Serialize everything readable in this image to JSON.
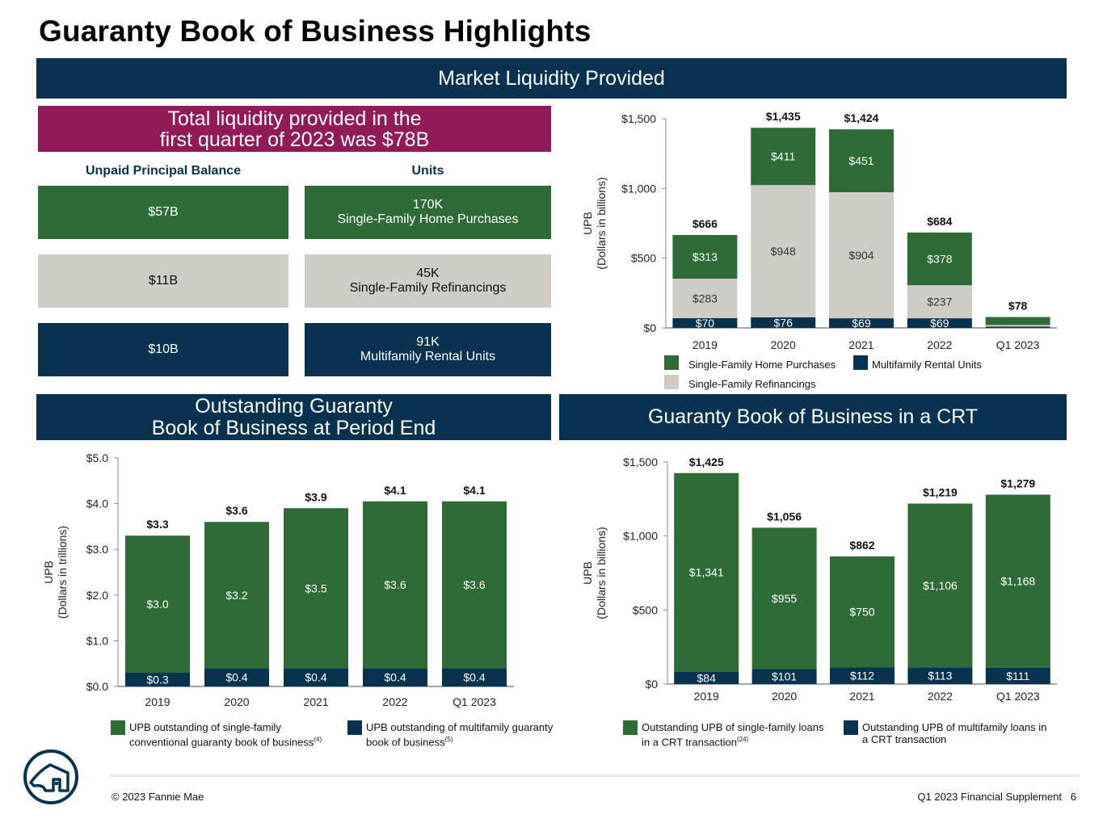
{
  "page_title": "Guaranty Book of Business Highlights",
  "market_liquidity": {
    "banner": "Market Liquidity Provided",
    "highlight": "Total liquidity provided in the\nfirst quarter of 2023 was $78B",
    "col_upb": "Unpaid Principal Balance",
    "col_units": "Units",
    "rows": [
      {
        "upb": "$57B",
        "units": "170K\nSingle-Family Home Purchases",
        "color": "#2e6b37"
      },
      {
        "upb": "$11B",
        "units": "45K\nSingle-Family Refinancings",
        "color": "#cfccc6"
      },
      {
        "upb": "$10B",
        "units": "91K\nMultifamily Rental Units",
        "color": "#073250"
      }
    ]
  },
  "outstanding_banner": "Outstanding Guaranty\nBook of Business at Period End",
  "crt_banner": "Guaranty Book of Business in a CRT",
  "colors": {
    "green": "#2e6b37",
    "grey": "#cfccc6",
    "navy": "#073250",
    "magenta": "#921a57"
  },
  "chart_data": [
    {
      "id": "liquidity",
      "type": "bar",
      "stacked": true,
      "categories": [
        "2019",
        "2020",
        "2021",
        "2022",
        "Q1 2023"
      ],
      "series": [
        {
          "name": "Multifamily Rental Units",
          "color": "#073250",
          "values": [
            70,
            76,
            69,
            69,
            10
          ],
          "labels": [
            "$70",
            "$76",
            "$69",
            "$69",
            ""
          ]
        },
        {
          "name": "Single-Family Refinancings",
          "color": "#cfccc6",
          "values": [
            283,
            948,
            904,
            237,
            11
          ],
          "labels": [
            "$283",
            "$948",
            "$904",
            "$237",
            ""
          ]
        },
        {
          "name": "Single-Family Home Purchases",
          "color": "#2e6b37",
          "values": [
            313,
            411,
            451,
            378,
            57
          ],
          "labels": [
            "$313",
            "$411",
            "$451",
            "$378",
            ""
          ]
        }
      ],
      "totals": [
        "$666",
        "$1,435",
        "$1,424",
        "$684",
        "$78"
      ],
      "ylabel": "UPB\n(Dollars in billions)",
      "ylim": [
        0,
        1500
      ],
      "yticks": [
        0,
        500,
        1000,
        1500
      ],
      "ytick_labels": [
        "$0",
        "$500",
        "$1,000",
        "$1,500"
      ],
      "legend": [
        {
          "name": "Single-Family Home Purchases",
          "color": "#2e6b37"
        },
        {
          "name": "Multifamily Rental Units",
          "color": "#073250"
        },
        {
          "name": "Single-Family Refinancings",
          "color": "#cfccc6"
        }
      ]
    },
    {
      "id": "outstanding",
      "type": "bar",
      "stacked": true,
      "categories": [
        "2019",
        "2020",
        "2021",
        "2022",
        "Q1 2023"
      ],
      "series": [
        {
          "name": "UPB outstanding of multifamily guaranty book of business",
          "color": "#073250",
          "values": [
            0.3,
            0.4,
            0.4,
            0.4,
            0.4
          ],
          "labels": [
            "$0.3",
            "$0.4",
            "$0.4",
            "$0.4",
            "$0.4"
          ]
        },
        {
          "name": "UPB outstanding of single-family conventional guaranty book of business",
          "color": "#2e6b37",
          "values": [
            3.0,
            3.2,
            3.5,
            3.65,
            3.65
          ],
          "labels": [
            "$3.0",
            "$3.2",
            "$3.5",
            "$3.6",
            "$3.6"
          ]
        }
      ],
      "totals": [
        "$3.3",
        "$3.6",
        "$3.9",
        "$4.1",
        "$4.1"
      ],
      "ylabel": "UPB\n(Dollars in trillions)",
      "ylim": [
        0,
        5
      ],
      "yticks": [
        0,
        1,
        2,
        3,
        4,
        5
      ],
      "ytick_labels": [
        "$0.0",
        "$1.0",
        "$2.0",
        "$3.0",
        "$4.0",
        "$5.0"
      ],
      "legend": [
        {
          "name": "UPB outstanding of single-family\nconventional guaranty book of business",
          "sup": "(4)",
          "color": "#2e6b37"
        },
        {
          "name": "UPB outstanding of multifamily guaranty\nbook of business",
          "sup": "(5)",
          "color": "#073250"
        }
      ]
    },
    {
      "id": "crt",
      "type": "bar",
      "stacked": true,
      "categories": [
        "2019",
        "2020",
        "2021",
        "2022",
        "Q1 2023"
      ],
      "series": [
        {
          "name": "Outstanding UPB of multifamily loans in a CRT transaction",
          "color": "#073250",
          "values": [
            84,
            101,
            112,
            113,
            111
          ],
          "labels": [
            "$84",
            "$101",
            "$112",
            "$113",
            "$111"
          ]
        },
        {
          "name": "Outstanding UPB of single-family loans in a CRT transaction",
          "color": "#2e6b37",
          "values": [
            1341,
            955,
            750,
            1106,
            1168
          ],
          "labels": [
            "$1,341",
            "$955",
            "$750",
            "$1,106",
            "$1,168"
          ]
        }
      ],
      "totals": [
        "$1,425",
        "$1,056",
        "$862",
        "$1,219",
        "$1,279"
      ],
      "ylabel": "UPB\n(Dollars in billions)",
      "ylim": [
        0,
        1500
      ],
      "yticks": [
        0,
        500,
        1000,
        1500
      ],
      "ytick_labels": [
        "$0",
        "$500",
        "$1,000",
        "$1,500"
      ],
      "legend": [
        {
          "name": "Outstanding UPB of single-family loans\nin a CRT transaction",
          "sup": "(24)",
          "color": "#2e6b37"
        },
        {
          "name": "Outstanding UPB of multifamily loans  in\na CRT transaction",
          "sup": "",
          "color": "#073250"
        }
      ]
    }
  ],
  "footer": {
    "copyright": "© 2023 Fannie Mae",
    "page_label": "Q1 2023 Financial Supplement   6"
  }
}
